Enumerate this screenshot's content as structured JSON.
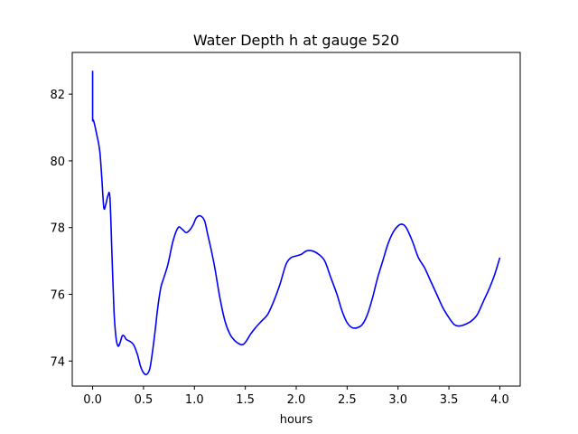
{
  "chart_data": {
    "type": "line",
    "title": "Water Depth h at gauge 520",
    "xlabel": "hours",
    "ylabel": "",
    "xlim": [
      -0.2,
      4.2
    ],
    "ylim": [
      73.25,
      83.25
    ],
    "xticks": [
      0.0,
      0.5,
      1.0,
      1.5,
      2.0,
      2.5,
      3.0,
      3.5,
      4.0
    ],
    "xtick_labels": [
      "0.0",
      "0.5",
      "1.0",
      "1.5",
      "2.0",
      "2.5",
      "3.0",
      "3.5",
      "4.0"
    ],
    "yticks": [
      74,
      76,
      78,
      80,
      82
    ],
    "ytick_labels": [
      "74",
      "76",
      "78",
      "80",
      "82"
    ],
    "grid": false,
    "series": [
      {
        "color": "#0000ff",
        "x": [
          0.0,
          0.0,
          0.0,
          0.01,
          0.04,
          0.07,
          0.09,
          0.11,
          0.13,
          0.15,
          0.17,
          0.19,
          0.21,
          0.23,
          0.25,
          0.27,
          0.29,
          0.31,
          0.33,
          0.36,
          0.4,
          0.44,
          0.47,
          0.5,
          0.53,
          0.56,
          0.58,
          0.61,
          0.64,
          0.67,
          0.7,
          0.74,
          0.79,
          0.84,
          0.88,
          0.92,
          0.96,
          0.99,
          1.02,
          1.06,
          1.1,
          1.13,
          1.16,
          1.2,
          1.25,
          1.3,
          1.35,
          1.4,
          1.45,
          1.48,
          1.51,
          1.55,
          1.6,
          1.66,
          1.72,
          1.78,
          1.84,
          1.9,
          1.95,
          2.0,
          2.05,
          2.1,
          2.16,
          2.22,
          2.28,
          2.34,
          2.4,
          2.45,
          2.5,
          2.55,
          2.6,
          2.65,
          2.7,
          2.75,
          2.8,
          2.85,
          2.9,
          2.95,
          3.0,
          3.04,
          3.08,
          3.14,
          3.2,
          3.26,
          3.32,
          3.38,
          3.44,
          3.5,
          3.55,
          3.6,
          3.66,
          3.72,
          3.78,
          3.84,
          3.9,
          3.95,
          4.0
        ],
        "y": [
          82.7,
          81.25,
          81.2,
          81.2,
          80.8,
          80.3,
          79.5,
          78.6,
          78.7,
          78.95,
          78.9,
          77.2,
          75.5,
          74.7,
          74.45,
          74.55,
          74.75,
          74.75,
          74.65,
          74.6,
          74.5,
          74.2,
          73.85,
          73.65,
          73.6,
          73.75,
          74.1,
          74.8,
          75.6,
          76.2,
          76.5,
          76.9,
          77.6,
          78.0,
          77.95,
          77.85,
          77.95,
          78.1,
          78.3,
          78.35,
          78.2,
          77.8,
          77.4,
          76.8,
          75.9,
          75.2,
          74.8,
          74.6,
          74.5,
          74.5,
          74.6,
          74.8,
          75.0,
          75.2,
          75.4,
          75.8,
          76.3,
          76.9,
          77.1,
          77.15,
          77.2,
          77.3,
          77.3,
          77.2,
          77.0,
          76.5,
          76.0,
          75.5,
          75.15,
          75.0,
          75.0,
          75.1,
          75.4,
          75.9,
          76.5,
          77.0,
          77.5,
          77.85,
          78.05,
          78.1,
          78.0,
          77.6,
          77.1,
          76.8,
          76.4,
          76.0,
          75.6,
          75.3,
          75.1,
          75.05,
          75.1,
          75.2,
          75.4,
          75.8,
          76.2,
          76.6,
          77.1
        ]
      }
    ]
  }
}
